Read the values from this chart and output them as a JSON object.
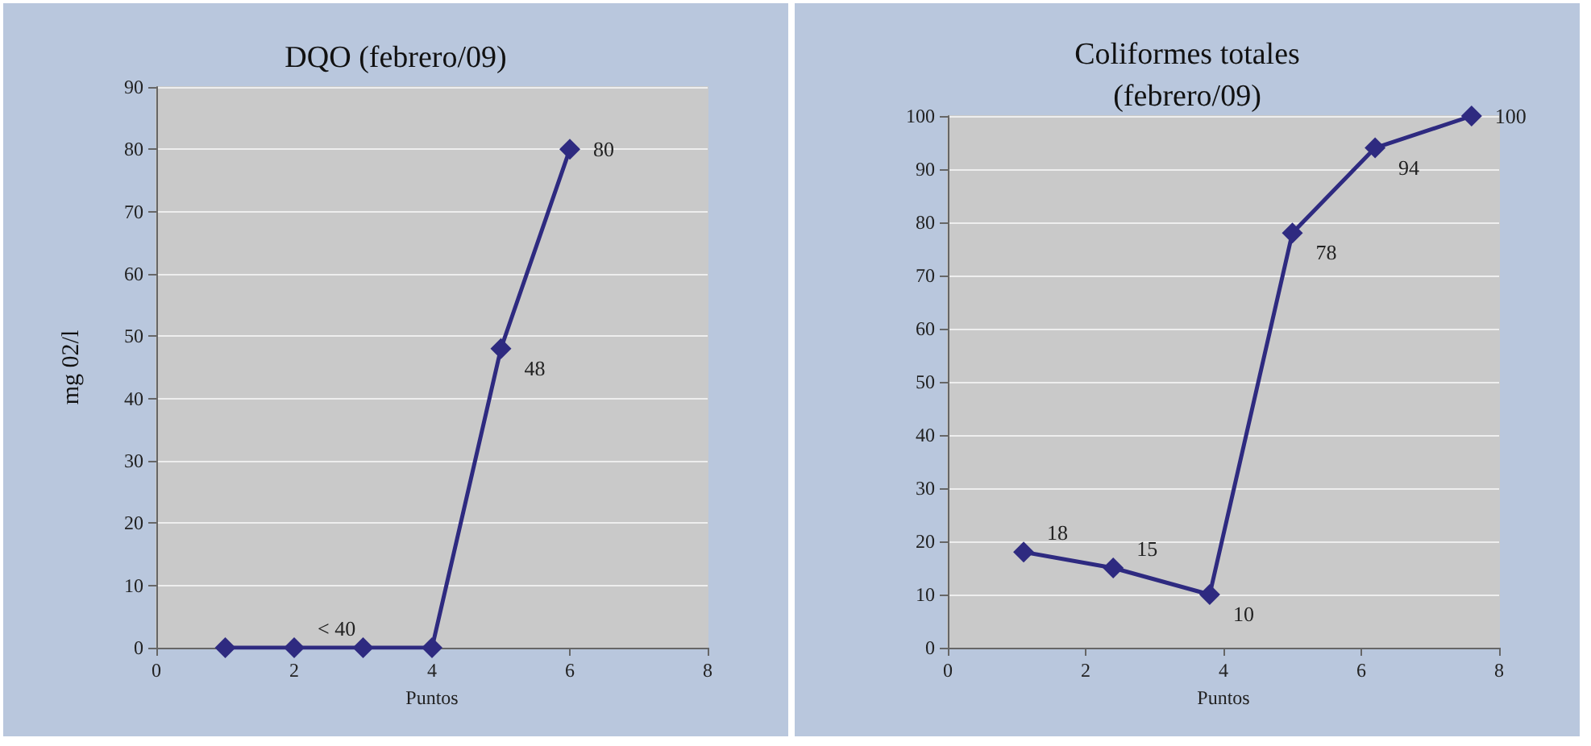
{
  "chart_data": [
    {
      "type": "line",
      "title": "DQO (febrero/09)",
      "xlabel": "Puntos",
      "ylabel": "mg 02/l",
      "x": [
        1,
        2,
        3,
        4,
        5,
        6
      ],
      "values": [
        0,
        0,
        0,
        0,
        48,
        80
      ],
      "value_labels": [
        null,
        "< 40",
        null,
        null,
        "48",
        "80"
      ],
      "color": "#2e2a80",
      "xlim": [
        0,
        8
      ],
      "xticks": [
        0,
        2,
        4,
        6,
        8
      ],
      "ylim": [
        0,
        90
      ],
      "yticks": [
        0,
        10,
        20,
        30,
        40,
        50,
        60,
        70,
        80,
        90
      ],
      "grid": "y",
      "marker": "diamond",
      "line_style": "solid"
    },
    {
      "type": "line",
      "title": "Coliformes totales\n(febrero/09)",
      "xlabel": "Puntos",
      "x": [
        1.1,
        2.4,
        3.8,
        5.0,
        6.2,
        7.6
      ],
      "values": [
        18,
        15,
        10,
        78,
        94,
        100
      ],
      "data_labels": true,
      "color": "#2e2a80",
      "xlim": [
        0,
        8
      ],
      "xticks": [
        0,
        2,
        4,
        6,
        8
      ],
      "ylim": [
        0,
        100
      ],
      "yticks": [
        0,
        10,
        20,
        30,
        40,
        50,
        60,
        70,
        80,
        90,
        100
      ],
      "grid": "y",
      "marker": "diamond",
      "line_style": "solid"
    }
  ]
}
